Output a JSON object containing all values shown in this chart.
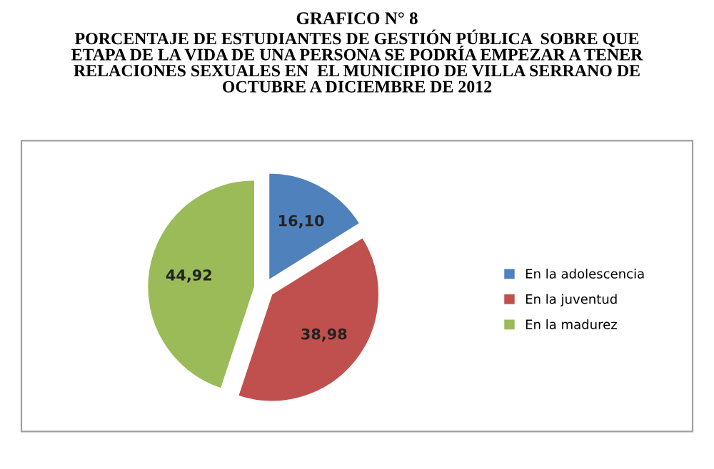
{
  "chart_data": {
    "type": "pie",
    "title": "GRAFICO N° 8",
    "subtitle": "PORCENTAJE DE ESTUDIANTES DE GESTIÓN PÚBLICA  SOBRE QUE\nETAPA DE LA VIDA DE UNA PERSONA SE PODRÍA EMPEZAR A TENER\nRELACIONES SEXUALES EN  EL MUNICIPIO DE VILLA SERRANO DE\nOCTUBRE A DICIEMBRE DE 2012",
    "categories": [
      "En la adolescencia",
      "En la juventud",
      "En la madurez"
    ],
    "values": [
      16.1,
      38.98,
      44.92
    ],
    "value_labels": [
      "16,10",
      "38,98",
      "44,92"
    ],
    "colors": [
      "#4f81bd",
      "#c0504d",
      "#9bbb59"
    ],
    "legend": "right"
  }
}
